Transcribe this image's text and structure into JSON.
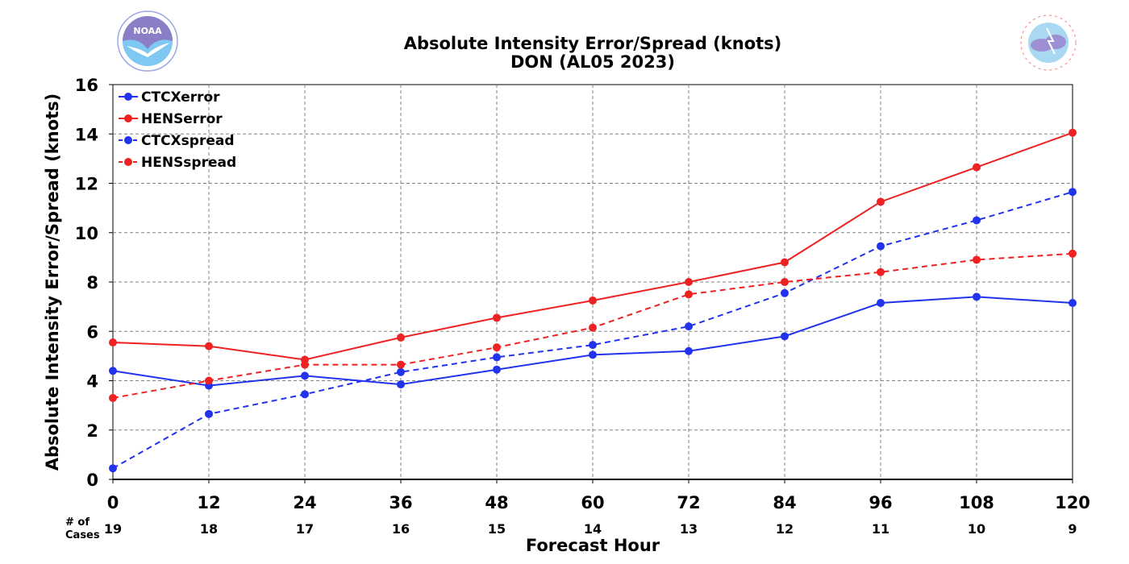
{
  "chart_data": {
    "type": "line",
    "title": "Absolute Intensity Error/Spread (knots)",
    "subtitle": "DON (AL05 2023)",
    "xlabel": "Forecast Hour",
    "ylabel": "Absolute Intensity Error/Spread (knots)",
    "xlim": [
      0,
      120
    ],
    "ylim": [
      0,
      16
    ],
    "x": [
      0,
      12,
      24,
      36,
      48,
      60,
      72,
      84,
      96,
      108,
      120
    ],
    "x_ticks": [
      "0",
      "12",
      "24",
      "36",
      "48",
      "60",
      "72",
      "84",
      "96",
      "108",
      "120"
    ],
    "y_ticks": [
      "0",
      "2",
      "4",
      "6",
      "8",
      "10",
      "12",
      "14",
      "16"
    ],
    "grid": true,
    "legend_position": "top-left",
    "cases_label": [
      "# of",
      "Cases"
    ],
    "cases": [
      "19",
      "18",
      "17",
      "16",
      "15",
      "14",
      "13",
      "12",
      "11",
      "10",
      "9"
    ],
    "series": [
      {
        "name": "CTCXerror",
        "color": "#2233ee",
        "dash": "solid",
        "values": [
          4.4,
          3.8,
          4.2,
          3.85,
          4.45,
          5.05,
          5.2,
          5.8,
          7.15,
          7.4,
          7.15
        ]
      },
      {
        "name": "HENSerror",
        "color": "#ee2222",
        "dash": "solid",
        "values": [
          5.55,
          5.4,
          4.85,
          5.75,
          6.55,
          7.25,
          8.0,
          8.8,
          11.25,
          12.65,
          14.05
        ]
      },
      {
        "name": "CTCXspread",
        "color": "#2233ee",
        "dash": "dashed",
        "values": [
          0.45,
          2.65,
          3.45,
          4.35,
          4.95,
          5.45,
          6.2,
          7.55,
          9.45,
          10.5,
          11.65
        ]
      },
      {
        "name": "HENSspread",
        "color": "#ee2222",
        "dash": "dashed",
        "values": [
          3.3,
          4.0,
          4.65,
          4.65,
          5.35,
          6.15,
          7.5,
          8.0,
          8.4,
          8.9,
          9.15
        ]
      }
    ]
  },
  "logos": {
    "left": {
      "icon": "noaa-logo-icon",
      "text": "NOAA"
    },
    "right": {
      "icon": "nws-logo-icon"
    }
  }
}
